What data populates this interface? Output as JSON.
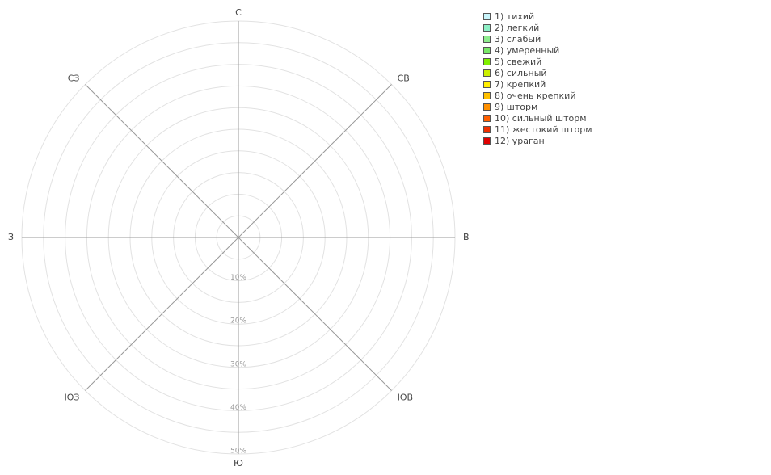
{
  "chart_data": {
    "type": "polar",
    "directions": [
      "С",
      "СВ",
      "В",
      "ЮВ",
      "Ю",
      "ЮЗ",
      "З",
      "СЗ"
    ],
    "rlim": [
      0,
      50
    ],
    "rgrid": [
      5,
      10,
      15,
      20,
      25,
      30,
      35,
      40,
      45,
      50
    ],
    "rticks": [
      {
        "value": 10,
        "label": "10%"
      },
      {
        "value": 20,
        "label": "20%"
      },
      {
        "value": 30,
        "label": "30%"
      },
      {
        "value": 40,
        "label": "40%"
      },
      {
        "value": 50,
        "label": "50%"
      }
    ],
    "series": [
      {
        "name": "1) тихий",
        "color": "#c8f4fa"
      },
      {
        "name": "2) легкий",
        "color": "#8ef0c6"
      },
      {
        "name": "3) слабый",
        "color": "#8eec8e"
      },
      {
        "name": "4) умеренный",
        "color": "#78e868"
      },
      {
        "name": "5) свежий",
        "color": "#80f000"
      },
      {
        "name": "6) сильный",
        "color": "#ccf000"
      },
      {
        "name": "7) крепкий",
        "color": "#ffee00"
      },
      {
        "name": "8) очень крепкий",
        "color": "#ffc000"
      },
      {
        "name": "9) шторм",
        "color": "#ff9000"
      },
      {
        "name": "10) сильный шторм",
        "color": "#ff6000"
      },
      {
        "name": "11) жестокий шторм",
        "color": "#f03000"
      },
      {
        "name": "12) ураган",
        "color": "#e00000"
      }
    ]
  }
}
